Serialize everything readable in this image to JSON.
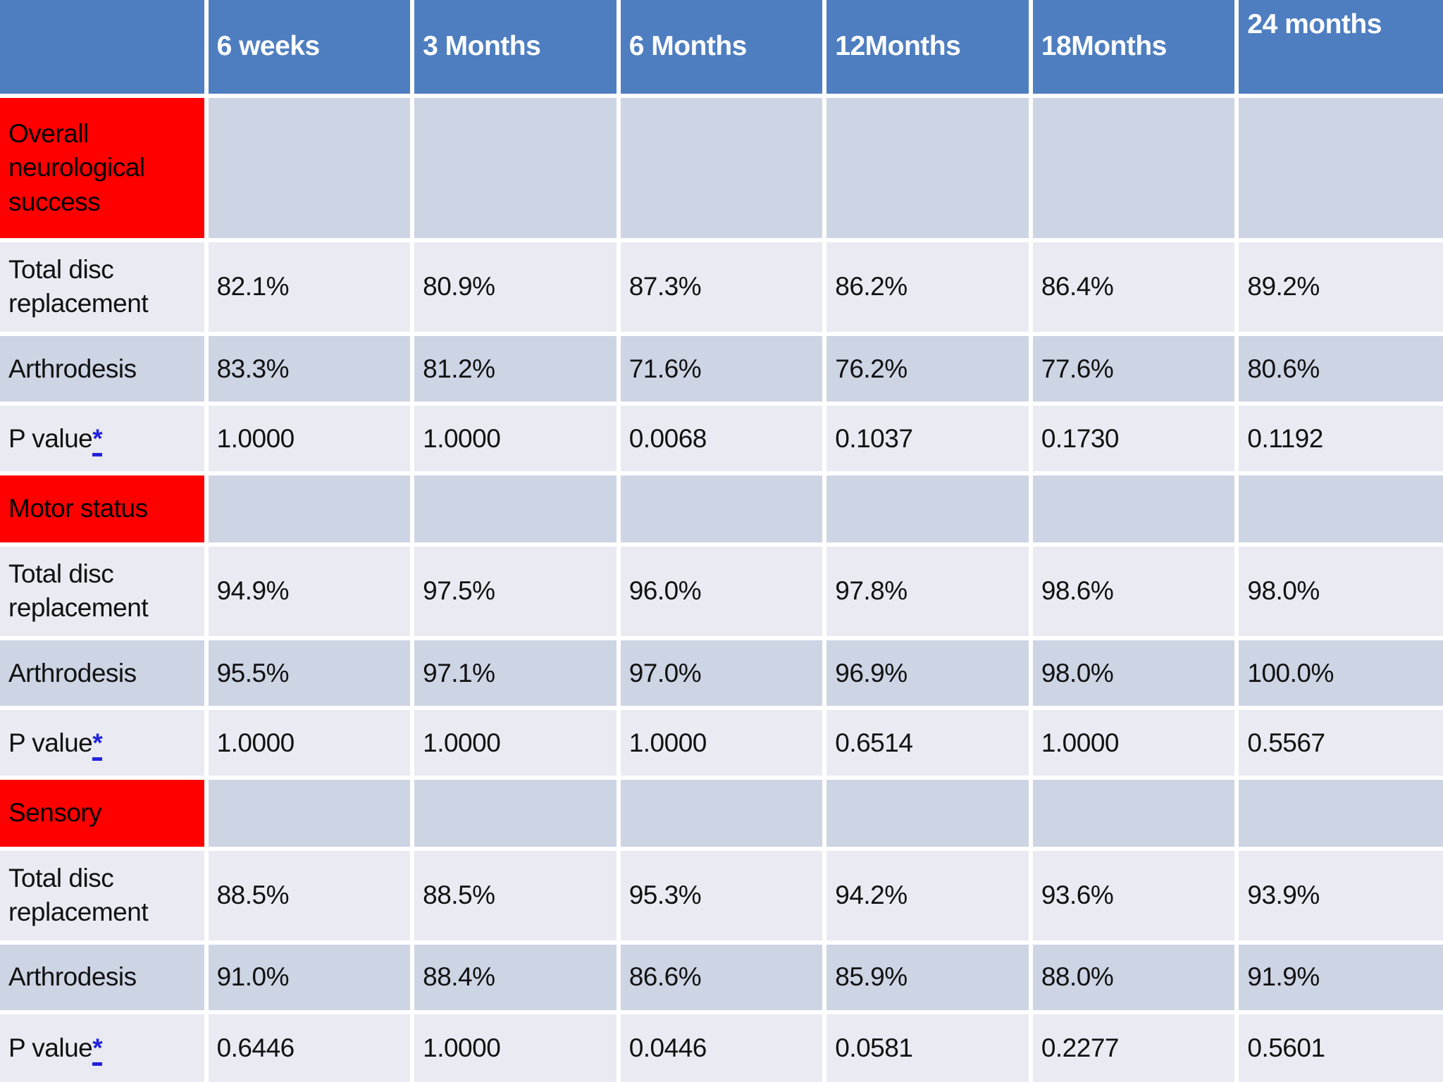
{
  "table": {
    "columns": [
      "",
      "6 weeks",
      "3 Months",
      "6 Months",
      "12Months",
      "18Months",
      "24 months"
    ],
    "footnote_symbol": "*",
    "colors": {
      "header_bg": "#4E7EC0",
      "header_text": "#FFFFFF",
      "band_dark": "#CDD4E4",
      "band_light": "#E9EAF2",
      "section_label_bg": "#FF0000",
      "body_text": "#111111",
      "footnote_link": "#2222DD",
      "gridline": "#FFFFFF"
    },
    "sections": [
      {
        "label": "Overall neurological success",
        "rows": [
          {
            "label": "Total disc replacement",
            "values": [
              "82.1%",
              "80.9%",
              "87.3%",
              "86.2%",
              "86.4%",
              "89.2%"
            ]
          },
          {
            "label": "Arthrodesis",
            "values": [
              "83.3%",
              "81.2%",
              "71.6%",
              "76.2%",
              "77.6%",
              "80.6%"
            ]
          },
          {
            "label": "P value",
            "values": [
              "1.0000",
              "1.0000",
              "0.0068",
              "0.1037",
              "0.1730",
              "0.1192"
            ]
          }
        ]
      },
      {
        "label": "Motor status",
        "rows": [
          {
            "label": "Total disc replacement",
            "values": [
              "94.9%",
              "97.5%",
              "96.0%",
              "97.8%",
              "98.6%",
              "98.0%"
            ]
          },
          {
            "label": "Arthrodesis",
            "values": [
              "95.5%",
              "97.1%",
              "97.0%",
              "96.9%",
              "98.0%",
              "100.0%"
            ]
          },
          {
            "label": "P value",
            "values": [
              "1.0000",
              "1.0000",
              "1.0000",
              "0.6514",
              "1.0000",
              "0.5567"
            ]
          }
        ]
      },
      {
        "label": "Sensory",
        "rows": [
          {
            "label": "Total disc replacement",
            "values": [
              "88.5%",
              "88.5%",
              "95.3%",
              "94.2%",
              "93.6%",
              "93.9%"
            ]
          },
          {
            "label": "Arthrodesis",
            "values": [
              "91.0%",
              "88.4%",
              "86.6%",
              "85.9%",
              "88.0%",
              "91.9%"
            ]
          },
          {
            "label": "P value",
            "values": [
              "0.6446",
              "1.0000",
              "0.0446",
              "0.0581",
              "0.2277",
              "0.5601"
            ]
          }
        ]
      }
    ]
  }
}
